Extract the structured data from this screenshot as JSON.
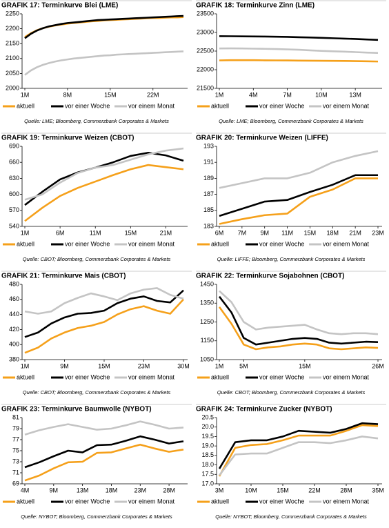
{
  "chart_data": [
    {
      "type": "line",
      "title": "GRAFIK 17: Terminkurve Blei (LME)",
      "source": "Quelle: LME; Bloomberg, Commerzbank Corporates & Markets",
      "categories": [
        "1M",
        null,
        null,
        null,
        null,
        null,
        null,
        "8M",
        null,
        null,
        null,
        null,
        null,
        null,
        "15M",
        null,
        null,
        null,
        null,
        null,
        null,
        "22M",
        null,
        null,
        null,
        null,
        null
      ],
      "ylim": [
        2000,
        2250
      ],
      "yticks": [
        2000,
        2050,
        2100,
        2150,
        2200,
        2250
      ],
      "series": [
        {
          "name": "aktuell",
          "color": "#f5a01a",
          "values": [
            2172,
            2185,
            2195,
            2202,
            2207,
            2211,
            2214,
            2217,
            2219,
            2221,
            2223,
            2225,
            2226,
            2228,
            2229,
            2230,
            2231,
            2232,
            2233,
            2234,
            2235,
            2236,
            2236,
            2237,
            2238,
            2238,
            2239
          ]
        },
        {
          "name": "vor einer Woche",
          "color": "#000000",
          "values": [
            2168,
            2183,
            2194,
            2202,
            2208,
            2212,
            2216,
            2219,
            2221,
            2223,
            2225,
            2227,
            2229,
            2230,
            2231,
            2232,
            2233,
            2234,
            2235,
            2236,
            2237,
            2238,
            2239,
            2240,
            2241,
            2242,
            2243
          ]
        },
        {
          "name": "vor einem Monat",
          "color": "#c4c4c4",
          "values": [
            2045,
            2060,
            2071,
            2079,
            2085,
            2090,
            2094,
            2097,
            2100,
            2102,
            2104,
            2106,
            2108,
            2110,
            2111,
            2113,
            2114,
            2115,
            2116,
            2117,
            2118,
            2119,
            2120,
            2121,
            2122,
            2123,
            2124
          ]
        }
      ]
    },
    {
      "type": "line",
      "title": "GRAFIK 18: Terminkurve Zinn (LME)",
      "source": "Quelle: LME; Bloomberg, Commerzbank Corporates & Markets",
      "categories": [
        "1M",
        null,
        null,
        "4M",
        null,
        null,
        "7M",
        null,
        null,
        "10M",
        null,
        null,
        "13M",
        null,
        null
      ],
      "ylim": [
        21500,
        23500
      ],
      "yticks": [
        21500,
        22000,
        22500,
        23000,
        23500
      ],
      "series": [
        {
          "name": "aktuell",
          "color": "#f5a01a",
          "values": [
            22250,
            22255,
            22255,
            22255,
            22252,
            22250,
            22248,
            22245,
            22242,
            22240,
            22238,
            22235,
            22230,
            22225,
            22220
          ]
        },
        {
          "name": "vor einer Woche",
          "color": "#000000",
          "values": [
            22900,
            22898,
            22895,
            22892,
            22890,
            22885,
            22880,
            22872,
            22865,
            22855,
            22845,
            22835,
            22825,
            22812,
            22800
          ]
        },
        {
          "name": "vor einem Monat",
          "color": "#c4c4c4",
          "values": [
            22570,
            22572,
            22570,
            22565,
            22560,
            22555,
            22545,
            22535,
            22520,
            22505,
            22495,
            22485,
            22472,
            22460,
            22450
          ]
        }
      ]
    },
    {
      "type": "line",
      "title": "GRAFIK 19: Terminkurve Weizen (CBOT)",
      "source": "Quelle: CBOT; Bloomberg, Commerzbank Corporates & Markets",
      "categories": [
        "1M",
        null,
        "6M",
        null,
        "11M",
        null,
        "15M",
        null,
        "21M",
        null
      ],
      "ylim": [
        540,
        690
      ],
      "yticks": [
        540,
        570,
        600,
        630,
        660,
        690
      ],
      "series": [
        {
          "name": "aktuell",
          "color": "#f5a01a",
          "values": [
            550,
            575,
            597,
            612,
            624,
            636,
            647,
            655,
            651,
            647
          ]
        },
        {
          "name": "vor einer Woche",
          "color": "#000000",
          "values": [
            580,
            605,
            628,
            641,
            650,
            660,
            672,
            678,
            673,
            663
          ]
        },
        {
          "name": "vor einem Monat",
          "color": "#c4c4c4",
          "values": [
            590,
            600,
            622,
            640,
            650,
            655,
            665,
            675,
            682,
            686
          ]
        }
      ]
    },
    {
      "type": "line",
      "title": "GRAFIK 20: Terminkurve Weizen (LIFFE)",
      "source": "Quelle: LIFFE; Bloomberg, Commerzbank Corporates & Markets",
      "categories": [
        "6M",
        "7M",
        "9M",
        "11M",
        "15M",
        "18M",
        "21M",
        "23M"
      ],
      "ylim": [
        183,
        193
      ],
      "yticks": [
        183,
        185,
        187,
        189,
        191,
        193
      ],
      "series": [
        {
          "name": "aktuell",
          "color": "#f5a01a",
          "values": [
            183.3,
            183.9,
            184.4,
            184.6,
            186.7,
            187.6,
            189.0,
            189.0
          ]
        },
        {
          "name": "vor einer Woche",
          "color": "#000000",
          "values": [
            184.3,
            185.2,
            186.1,
            186.3,
            187.3,
            188.2,
            189.4,
            189.4
          ]
        },
        {
          "name": "vor einem Monat",
          "color": "#c4c4c4",
          "values": [
            187.8,
            188.4,
            189.0,
            189.0,
            189.7,
            191.0,
            191.8,
            192.4
          ]
        }
      ]
    },
    {
      "type": "line",
      "title": "GRAFIK 21: Terminkurve Mais (CBOT)",
      "source": "Quelle: CBOT; Bloomberg, Commerzbank Corporates & Markets",
      "categories": [
        "1M",
        null,
        null,
        "9M",
        null,
        null,
        "15M",
        null,
        null,
        "23M",
        null,
        null,
        "30M"
      ],
      "ylim": [
        380,
        480
      ],
      "yticks": [
        380,
        400,
        420,
        440,
        460,
        480
      ],
      "series": [
        {
          "name": "aktuell",
          "color": "#f5a01a",
          "values": [
            389,
            396,
            408,
            416,
            422,
            425,
            430,
            440,
            447,
            451,
            445,
            441,
            460
          ]
        },
        {
          "name": "vor einer Woche",
          "color": "#000000",
          "values": [
            410,
            416,
            428,
            436,
            441,
            442,
            445,
            455,
            461,
            464,
            458,
            456,
            472
          ]
        },
        {
          "name": "vor einem Monat",
          "color": "#c4c4c4",
          "values": [
            444,
            441,
            444,
            455,
            462,
            468,
            464,
            459,
            468,
            473,
            475,
            466,
            461
          ]
        }
      ]
    },
    {
      "type": "line",
      "title": "GRAFIK 22: Terminkurve Sojabohnen (CBOT)",
      "source": "Quelle: CBOT; Bloomberg, Commerzbank Corporates & Markets",
      "categories": [
        "1M",
        null,
        "5M",
        null,
        null,
        null,
        null,
        "15M",
        null,
        null,
        null,
        null,
        null,
        "26M"
      ],
      "ylim": [
        1050,
        1450
      ],
      "yticks": [
        1050,
        1150,
        1250,
        1350,
        1450
      ],
      "series": [
        {
          "name": "aktuell",
          "color": "#f5a01a",
          "values": [
            1330,
            1240,
            1130,
            1105,
            1115,
            1120,
            1130,
            1135,
            1130,
            1110,
            1105,
            1110,
            1115,
            1112
          ]
        },
        {
          "name": "vor einer Woche",
          "color": "#000000",
          "values": [
            1385,
            1300,
            1165,
            1130,
            1140,
            1150,
            1160,
            1165,
            1160,
            1140,
            1135,
            1140,
            1145,
            1143
          ]
        },
        {
          "name": "vor einem Monat",
          "color": "#c4c4c4",
          "values": [
            1415,
            1355,
            1250,
            1210,
            1220,
            1225,
            1230,
            1235,
            1210,
            1190,
            1185,
            1190,
            1190,
            1185
          ]
        }
      ]
    },
    {
      "type": "line",
      "title": "GRAFIK 23: Terminkurve Baumwolle (NYBOT)",
      "source": "Quelle: NYBOT; Bloomberg, Commerzbank Corporates & Markets",
      "categories": [
        "4M",
        null,
        "9M",
        null,
        "13M",
        null,
        "18M",
        null,
        "23M",
        null,
        "28M",
        null
      ],
      "ylim": [
        69,
        81
      ],
      "yticks": [
        69,
        71,
        73,
        75,
        77,
        79,
        81
      ],
      "series": [
        {
          "name": "aktuell",
          "color": "#f5a01a",
          "values": [
            69.6,
            70.5,
            71.8,
            72.9,
            73.0,
            74.6,
            74.7,
            75.4,
            76.1,
            75.4,
            74.8,
            75.2
          ]
        },
        {
          "name": "vor einer Woche",
          "color": "#000000",
          "values": [
            72.0,
            72.9,
            74.0,
            75.0,
            74.7,
            76.0,
            76.1,
            76.8,
            77.6,
            77.0,
            76.3,
            76.7
          ]
        },
        {
          "name": "vor einem Monat",
          "color": "#c4c4c4",
          "values": [
            77.9,
            78.7,
            79.3,
            79.8,
            79.3,
            78.8,
            79.0,
            79.6,
            80.3,
            79.7,
            79.0,
            79.2
          ]
        }
      ]
    },
    {
      "type": "line",
      "title": "GRAFIK 24: Terminkurve Zucker (NYBOT)",
      "source": "Quelle: NYBOT; Bloomberg, Commerzbank Corporates & Markets",
      "categories": [
        "3M",
        null,
        "10M",
        null,
        "15M",
        null,
        "22M",
        null,
        "28M",
        null,
        "35M"
      ],
      "ylim": [
        17,
        20.5
      ],
      "yticks": [
        {
          "value": 17,
          "label": "17.0"
        },
        17.5,
        {
          "value": 18,
          "label": "18.0"
        },
        18.5,
        {
          "value": 19,
          "label": "19.0"
        },
        19.5,
        {
          "value": 20,
          "label": "20.0"
        },
        20.5
      ],
      "series": [
        {
          "name": "aktuell",
          "color": "#f5a01a",
          "values": [
            17.4,
            18.9,
            19.05,
            19.1,
            19.3,
            19.55,
            19.55,
            19.55,
            19.8,
            20.1,
            20.05
          ]
        },
        {
          "name": "vor einer Woche",
          "color": "#000000",
          "values": [
            17.8,
            19.2,
            19.3,
            19.3,
            19.5,
            19.8,
            19.75,
            19.7,
            19.9,
            20.2,
            20.15
          ]
        },
        {
          "name": "vor einem Monat",
          "color": "#c4c4c4",
          "values": [
            17.45,
            18.55,
            18.6,
            18.6,
            18.9,
            19.2,
            19.2,
            19.15,
            19.3,
            19.5,
            19.4
          ]
        }
      ]
    }
  ]
}
